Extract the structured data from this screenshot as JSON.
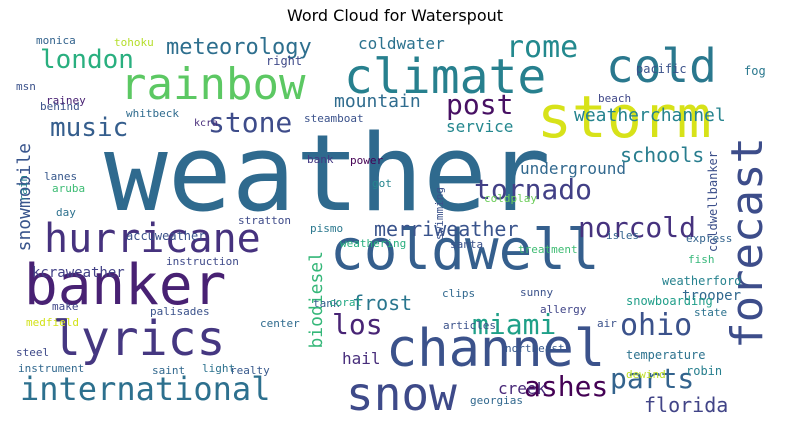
{
  "figure": {
    "title": "Word Cloud for Waterspout"
  },
  "words": [
    {
      "text": "weather",
      "color": "#2f6a8e"
    },
    {
      "text": "banker",
      "color": "#482173"
    },
    {
      "text": "coldwell",
      "color": "#355f8d"
    },
    {
      "text": "storm",
      "color": "#d7e219"
    },
    {
      "text": "climate",
      "color": "#27808e"
    },
    {
      "text": "rainbow",
      "color": "#5cc863"
    },
    {
      "text": "cold",
      "color": "#2a788e"
    },
    {
      "text": "lyrics",
      "color": "#453781"
    },
    {
      "text": "channel",
      "color": "#3b528b"
    },
    {
      "text": "hurricane",
      "color": "#46327e"
    },
    {
      "text": "forecast",
      "color": "#3d4d8a"
    },
    {
      "text": "snow",
      "color": "#3e4a89"
    },
    {
      "text": "international",
      "color": "#2d708e"
    },
    {
      "text": "rome",
      "color": "#23898e"
    },
    {
      "text": "london",
      "color": "#29af7f"
    },
    {
      "text": "meteorology",
      "color": "#2e6f8e"
    },
    {
      "text": "music",
      "color": "#355e8d"
    },
    {
      "text": "post",
      "color": "#471063"
    },
    {
      "text": "stone",
      "color": "#3e4c8a"
    },
    {
      "text": "tornado",
      "color": "#424086"
    },
    {
      "text": "norcold",
      "color": "#46327e"
    },
    {
      "text": "miami",
      "color": "#1fa088"
    },
    {
      "text": "ohio",
      "color": "#3b528b"
    },
    {
      "text": "los",
      "color": "#482475"
    },
    {
      "text": "parts",
      "color": "#33638d"
    },
    {
      "text": "ashes",
      "color": "#440154"
    },
    {
      "text": "florida",
      "color": "#414487"
    },
    {
      "text": "frost",
      "color": "#2a768e"
    },
    {
      "text": "schools",
      "color": "#287d8e"
    },
    {
      "text": "merriweather",
      "color": "#3a548c"
    },
    {
      "text": "mountain",
      "color": "#2f6c8e"
    },
    {
      "text": "service",
      "color": "#24878e"
    },
    {
      "text": "weatherchannel",
      "color": "#25838e"
    },
    {
      "text": "coldwater",
      "color": "#2c728e"
    },
    {
      "text": "snowmobile",
      "color": "#39558c"
    },
    {
      "text": "underground",
      "color": "#31688e"
    },
    {
      "text": "kcraweather",
      "color": "#424186"
    },
    {
      "text": "accuweather",
      "color": "#3b528b"
    },
    {
      "text": "biodiesel",
      "color": "#35b779"
    },
    {
      "text": "coldwellbanker",
      "color": "#3c4f8a"
    },
    {
      "text": "hail",
      "color": "#472d7b"
    },
    {
      "text": "creek",
      "color": "#482878"
    },
    {
      "text": "trooper",
      "color": "#31688e"
    },
    {
      "text": "weatherford",
      "color": "#26828e"
    },
    {
      "text": "temperature",
      "color": "#2c728e"
    },
    {
      "text": "robin",
      "color": "#277f8e"
    },
    {
      "text": "snowboarding",
      "color": "#1f9e89"
    },
    {
      "text": "pacific",
      "color": "#3b528b"
    },
    {
      "text": "fog",
      "color": "#2a788e"
    },
    {
      "text": "beach",
      "color": "#3f4788"
    },
    {
      "text": "tohoku",
      "color": "#b5de2b"
    },
    {
      "text": "monica",
      "color": "#33638d"
    },
    {
      "text": "right",
      "color": "#3e4989"
    },
    {
      "text": "steamboat",
      "color": "#3b528b"
    },
    {
      "text": "kcra",
      "color": "#472c7a"
    },
    {
      "text": "whitbeck",
      "color": "#2f6b8e"
    },
    {
      "text": "rainey",
      "color": "#482173"
    },
    {
      "text": "behind",
      "color": "#3b528b"
    },
    {
      "text": "msn",
      "color": "#3b528b"
    },
    {
      "text": "lanes",
      "color": "#38598c"
    },
    {
      "text": "aruba",
      "color": "#3dbc74"
    },
    {
      "text": "day",
      "color": "#2d718e"
    },
    {
      "text": "rain",
      "color": "#277f8e"
    },
    {
      "text": "bank",
      "color": "#443983"
    },
    {
      "text": "power",
      "color": "#440154"
    },
    {
      "text": "got",
      "color": "#25858e"
    },
    {
      "text": "coldplay",
      "color": "#6ccd5a"
    },
    {
      "text": "swimming",
      "color": "#3b528b"
    },
    {
      "text": "stratton",
      "color": "#3e4a89"
    },
    {
      "text": "instruction",
      "color": "#3e4989"
    },
    {
      "text": "weathering",
      "color": "#29af7f"
    },
    {
      "text": "pismo",
      "color": "#2a788e"
    },
    {
      "text": "tank",
      "color": "#35608d"
    },
    {
      "text": "coral",
      "color": "#22a884"
    },
    {
      "text": "santa",
      "color": "#3b528b"
    },
    {
      "text": "treatment",
      "color": "#3fbc73"
    },
    {
      "text": "isles",
      "color": "#33638d"
    },
    {
      "text": "express",
      "color": "#33638d"
    },
    {
      "text": "fish",
      "color": "#35b779"
    },
    {
      "text": "clips",
      "color": "#31688e"
    },
    {
      "text": "sunny",
      "color": "#3b528b"
    },
    {
      "text": "allergy",
      "color": "#404588"
    },
    {
      "text": "state",
      "color": "#2c728e"
    },
    {
      "text": "articles",
      "color": "#3b528b"
    },
    {
      "text": "northeast",
      "color": "#38598c"
    },
    {
      "text": "air",
      "color": "#3b528b"
    },
    {
      "text": "dewind",
      "color": "#c0df25"
    },
    {
      "text": "georgias",
      "color": "#31688e"
    },
    {
      "text": "make",
      "color": "#404688"
    },
    {
      "text": "palisades",
      "color": "#3b528b"
    },
    {
      "text": "center",
      "color": "#2f6b8e"
    },
    {
      "text": "medfield",
      "color": "#d2e21b"
    },
    {
      "text": "steel",
      "color": "#3e4989"
    },
    {
      "text": "instrument",
      "color": "#31688e"
    },
    {
      "text": "saint",
      "color": "#31688e"
    },
    {
      "text": "light",
      "color": "#2c728e"
    },
    {
      "text": "realty",
      "color": "#38598c"
    }
  ]
}
